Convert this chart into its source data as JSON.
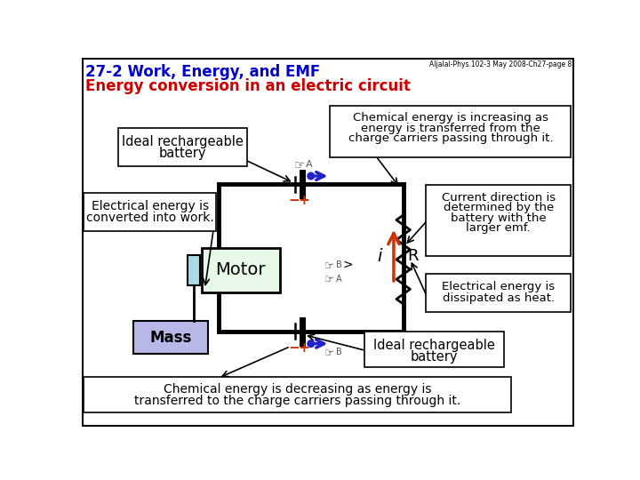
{
  "title_line1": "27-2 Work, Energy, and EMF",
  "title_line2": "Energy conversion in an electric circuit",
  "header_note": "Aljalal-Phys.102-3 May 2008-Ch27-page 8",
  "title_color1": "#0000cc",
  "title_color2": "#cc0000",
  "circuit_lw": 3.5,
  "res_color": "black",
  "arrow_color": "#cc3300",
  "blue_color": "#2222cc",
  "motor_fill": "#e8f8e8",
  "mass_fill": "#b8b8e8"
}
